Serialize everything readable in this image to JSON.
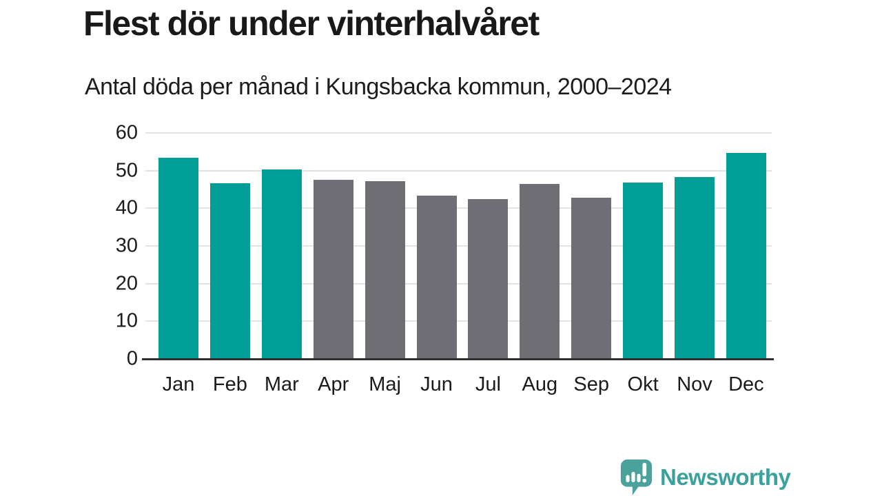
{
  "header": {
    "title": "Flest dör under vinterhalvåret",
    "subtitle": "Antal döda per månad i Kungsbacka kommun, 2000–2024"
  },
  "chart_data": {
    "type": "bar",
    "title": "Flest dör under vinterhalvåret",
    "subtitle": "Antal döda per månad i Kungsbacka kommun, 2000–2024",
    "categories": [
      "Jan",
      "Feb",
      "Mar",
      "Apr",
      "Maj",
      "Jun",
      "Jul",
      "Aug",
      "Sep",
      "Okt",
      "Nov",
      "Dec"
    ],
    "values": [
      53.2,
      46.4,
      50.2,
      47.3,
      47.0,
      43.1,
      42.2,
      46.3,
      42.6,
      46.6,
      48.2,
      54.5
    ],
    "highlighted_winter_months": [
      true,
      true,
      true,
      false,
      false,
      false,
      false,
      false,
      false,
      true,
      true,
      true
    ],
    "xlabel": "",
    "ylabel": "",
    "ylim": [
      0,
      60
    ],
    "yticks": [
      0,
      10,
      20,
      30,
      40,
      50,
      60
    ],
    "grid": true,
    "legend": "none",
    "colors": {
      "winter_bar": "#009E96",
      "summer_bar": "#6F6E74",
      "gridline": "#E3E3E3",
      "axis_line": "#2D2D2D",
      "text": "#1B1B1B"
    }
  },
  "footer": {
    "brand": "Newsworthy",
    "logo_icon": "speech-bubble-bar-chart-exclamation",
    "logo_color": "#4BA29C",
    "brand_text_color": "#3AA29B"
  }
}
